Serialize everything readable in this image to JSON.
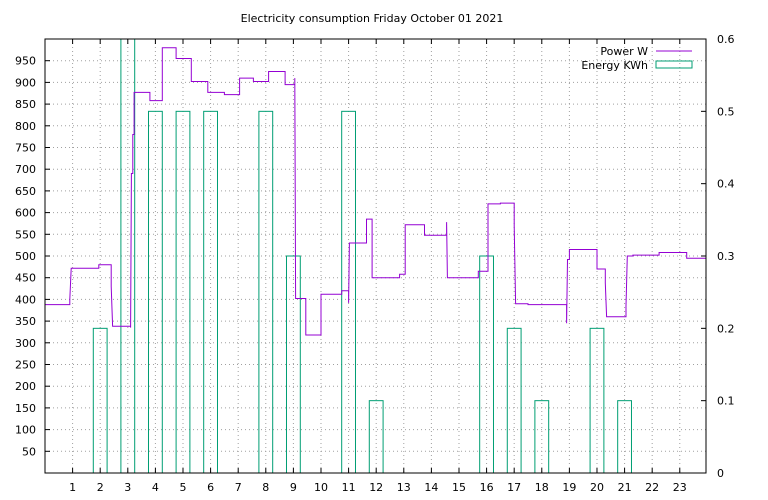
{
  "chart_data": {
    "type": "bar+line",
    "title": "Electricity consumption Friday October 01 2021",
    "xlabel": "",
    "ylabel": "",
    "y2label": "",
    "xlim": [
      0,
      23.95
    ],
    "ylim": [
      0,
      1000
    ],
    "y2lim": [
      0,
      0.6
    ],
    "xticks": [
      1,
      2,
      3,
      4,
      5,
      6,
      7,
      8,
      9,
      10,
      11,
      12,
      13,
      14,
      15,
      16,
      17,
      18,
      19,
      20,
      21,
      22,
      23
    ],
    "yticks": [
      50,
      100,
      150,
      200,
      250,
      300,
      350,
      400,
      450,
      500,
      550,
      600,
      650,
      700,
      750,
      800,
      850,
      900,
      950
    ],
    "y2ticks": [
      0,
      0.1,
      0.2,
      0.3,
      0.4,
      0.5,
      0.6
    ],
    "grid": true,
    "legend_position": "top-right",
    "colors": {
      "power": "#9400d3",
      "energy": "#009e73"
    },
    "series": [
      {
        "name": "Power W",
        "kind": "step-line",
        "axis": "y",
        "points": [
          [
            0,
            388
          ],
          [
            0.9,
            388
          ],
          [
            0.9,
            400
          ],
          [
            0.95,
            472
          ],
          [
            1.95,
            472
          ],
          [
            1.95,
            480
          ],
          [
            2.4,
            480
          ],
          [
            2.4,
            430
          ],
          [
            2.45,
            338
          ],
          [
            3.1,
            338
          ],
          [
            3.1,
            335
          ],
          [
            3.13,
            690
          ],
          [
            3.18,
            690
          ],
          [
            3.18,
            780
          ],
          [
            3.23,
            780
          ],
          [
            3.23,
            877
          ],
          [
            3.8,
            877
          ],
          [
            3.8,
            858
          ],
          [
            4.25,
            858
          ],
          [
            4.25,
            980
          ],
          [
            4.75,
            980
          ],
          [
            4.75,
            955
          ],
          [
            5.3,
            955
          ],
          [
            5.3,
            902
          ],
          [
            5.9,
            902
          ],
          [
            5.9,
            877
          ],
          [
            6.5,
            877
          ],
          [
            6.5,
            872
          ],
          [
            7.05,
            872
          ],
          [
            7.05,
            910
          ],
          [
            7.55,
            910
          ],
          [
            7.55,
            902
          ],
          [
            8.1,
            902
          ],
          [
            8.1,
            925
          ],
          [
            8.7,
            925
          ],
          [
            8.7,
            895
          ],
          [
            9.05,
            895
          ],
          [
            9.05,
            910
          ],
          [
            9.08,
            402
          ],
          [
            9.45,
            402
          ],
          [
            9.45,
            318
          ],
          [
            10.0,
            318
          ],
          [
            10.0,
            412
          ],
          [
            10.75,
            412
          ],
          [
            10.75,
            420
          ],
          [
            11.0,
            420
          ],
          [
            11.0,
            392
          ],
          [
            11.03,
            530
          ],
          [
            11.65,
            530
          ],
          [
            11.65,
            585
          ],
          [
            11.85,
            585
          ],
          [
            11.85,
            450
          ],
          [
            12.85,
            450
          ],
          [
            12.85,
            458
          ],
          [
            13.05,
            458
          ],
          [
            13.05,
            572
          ],
          [
            13.75,
            572
          ],
          [
            13.75,
            548
          ],
          [
            14.55,
            548
          ],
          [
            14.55,
            578
          ],
          [
            14.58,
            450
          ],
          [
            15.7,
            450
          ],
          [
            15.7,
            465
          ],
          [
            16.05,
            465
          ],
          [
            16.05,
            620
          ],
          [
            16.5,
            620
          ],
          [
            16.5,
            622
          ],
          [
            17.0,
            622
          ],
          [
            17.0,
            570
          ],
          [
            17.05,
            390
          ],
          [
            17.5,
            390
          ],
          [
            17.5,
            388
          ],
          [
            18.9,
            388
          ],
          [
            18.9,
            345
          ],
          [
            18.93,
            492
          ],
          [
            19.0,
            492
          ],
          [
            19.0,
            515
          ],
          [
            20.0,
            515
          ],
          [
            20.0,
            470
          ],
          [
            20.3,
            470
          ],
          [
            20.3,
            438
          ],
          [
            20.35,
            360
          ],
          [
            21.05,
            360
          ],
          [
            21.05,
            385
          ],
          [
            21.1,
            500
          ],
          [
            21.3,
            500
          ],
          [
            21.3,
            502
          ],
          [
            22.25,
            502
          ],
          [
            22.25,
            508
          ],
          [
            23.25,
            508
          ],
          [
            23.25,
            495
          ],
          [
            23.95,
            495
          ]
        ]
      },
      {
        "name": "Energy KWh",
        "kind": "hollow-bar",
        "axis": "y2",
        "points": [
          [
            2,
            0.2
          ],
          [
            3,
            0.6
          ],
          [
            4,
            0.5
          ],
          [
            5,
            0.5
          ],
          [
            6,
            0.5
          ],
          [
            8,
            0.5
          ],
          [
            9,
            0.3
          ],
          [
            11,
            0.5
          ],
          [
            12,
            0.1
          ],
          [
            16,
            0.3
          ],
          [
            17,
            0.2
          ],
          [
            18,
            0.1
          ],
          [
            20,
            0.2
          ],
          [
            21,
            0.1
          ]
        ]
      }
    ]
  }
}
